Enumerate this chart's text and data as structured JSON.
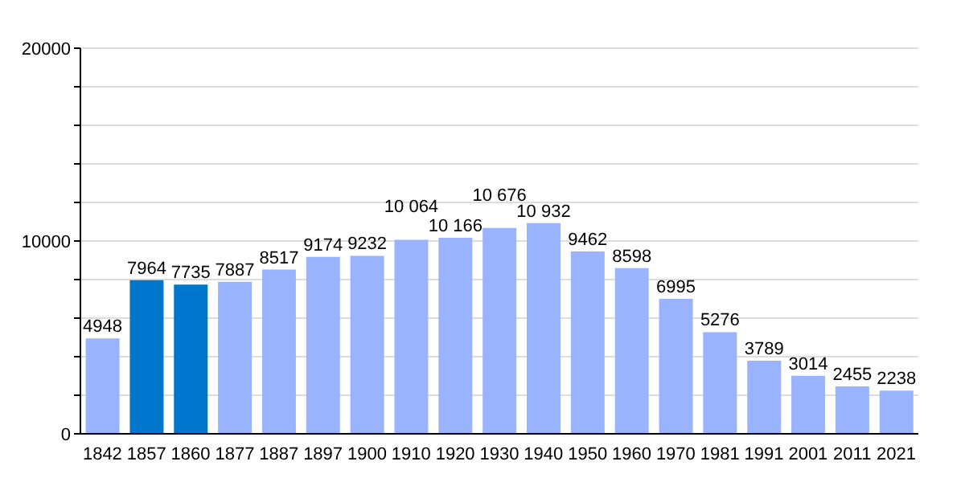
{
  "chart_data": {
    "type": "bar",
    "categories": [
      "1842",
      "1857",
      "1860",
      "1877",
      "1887",
      "1897",
      "1900",
      "1910",
      "1920",
      "1930",
      "1940",
      "1950",
      "1960",
      "1970",
      "1981",
      "1991",
      "2001",
      "2011",
      "2021"
    ],
    "values": [
      4948,
      7964,
      7735,
      7887,
      8517,
      9174,
      9232,
      10064,
      10166,
      10676,
      10932,
      9462,
      8598,
      6995,
      5276,
      3789,
      3014,
      2455,
      2238
    ],
    "value_labels": [
      "4948",
      "7964",
      "7735",
      "7887",
      "8517",
      "9174",
      "9232",
      "10 064",
      "10 166",
      "10 676",
      "10 932",
      "9462",
      "8598",
      "6995",
      "5276",
      "3789",
      "3014",
      "2455",
      "2238"
    ],
    "colors": [
      "#99b3ff",
      "#0077cc",
      "#0077cc",
      "#99b3ff",
      "#99b3ff",
      "#99b3ff",
      "#99b3ff",
      "#99b3ff",
      "#99b3ff",
      "#99b3ff",
      "#99b3ff",
      "#99b3ff",
      "#99b3ff",
      "#99b3ff",
      "#99b3ff",
      "#99b3ff",
      "#99b3ff",
      "#99b3ff",
      "#99b3ff"
    ],
    "ylim": [
      0,
      20000
    ],
    "yticks": [
      0,
      {
        "value": 2000,
        "label": null
      },
      {
        "value": 4000,
        "label": null
      },
      {
        "value": 6000,
        "label": null
      },
      {
        "value": 8000,
        "label": null
      },
      10000,
      {
        "value": 12000,
        "label": null
      },
      {
        "value": 14000,
        "label": null
      },
      {
        "value": 16000,
        "label": null
      },
      {
        "value": 18000,
        "label": null
      },
      20000
    ],
    "grid": "y"
  }
}
